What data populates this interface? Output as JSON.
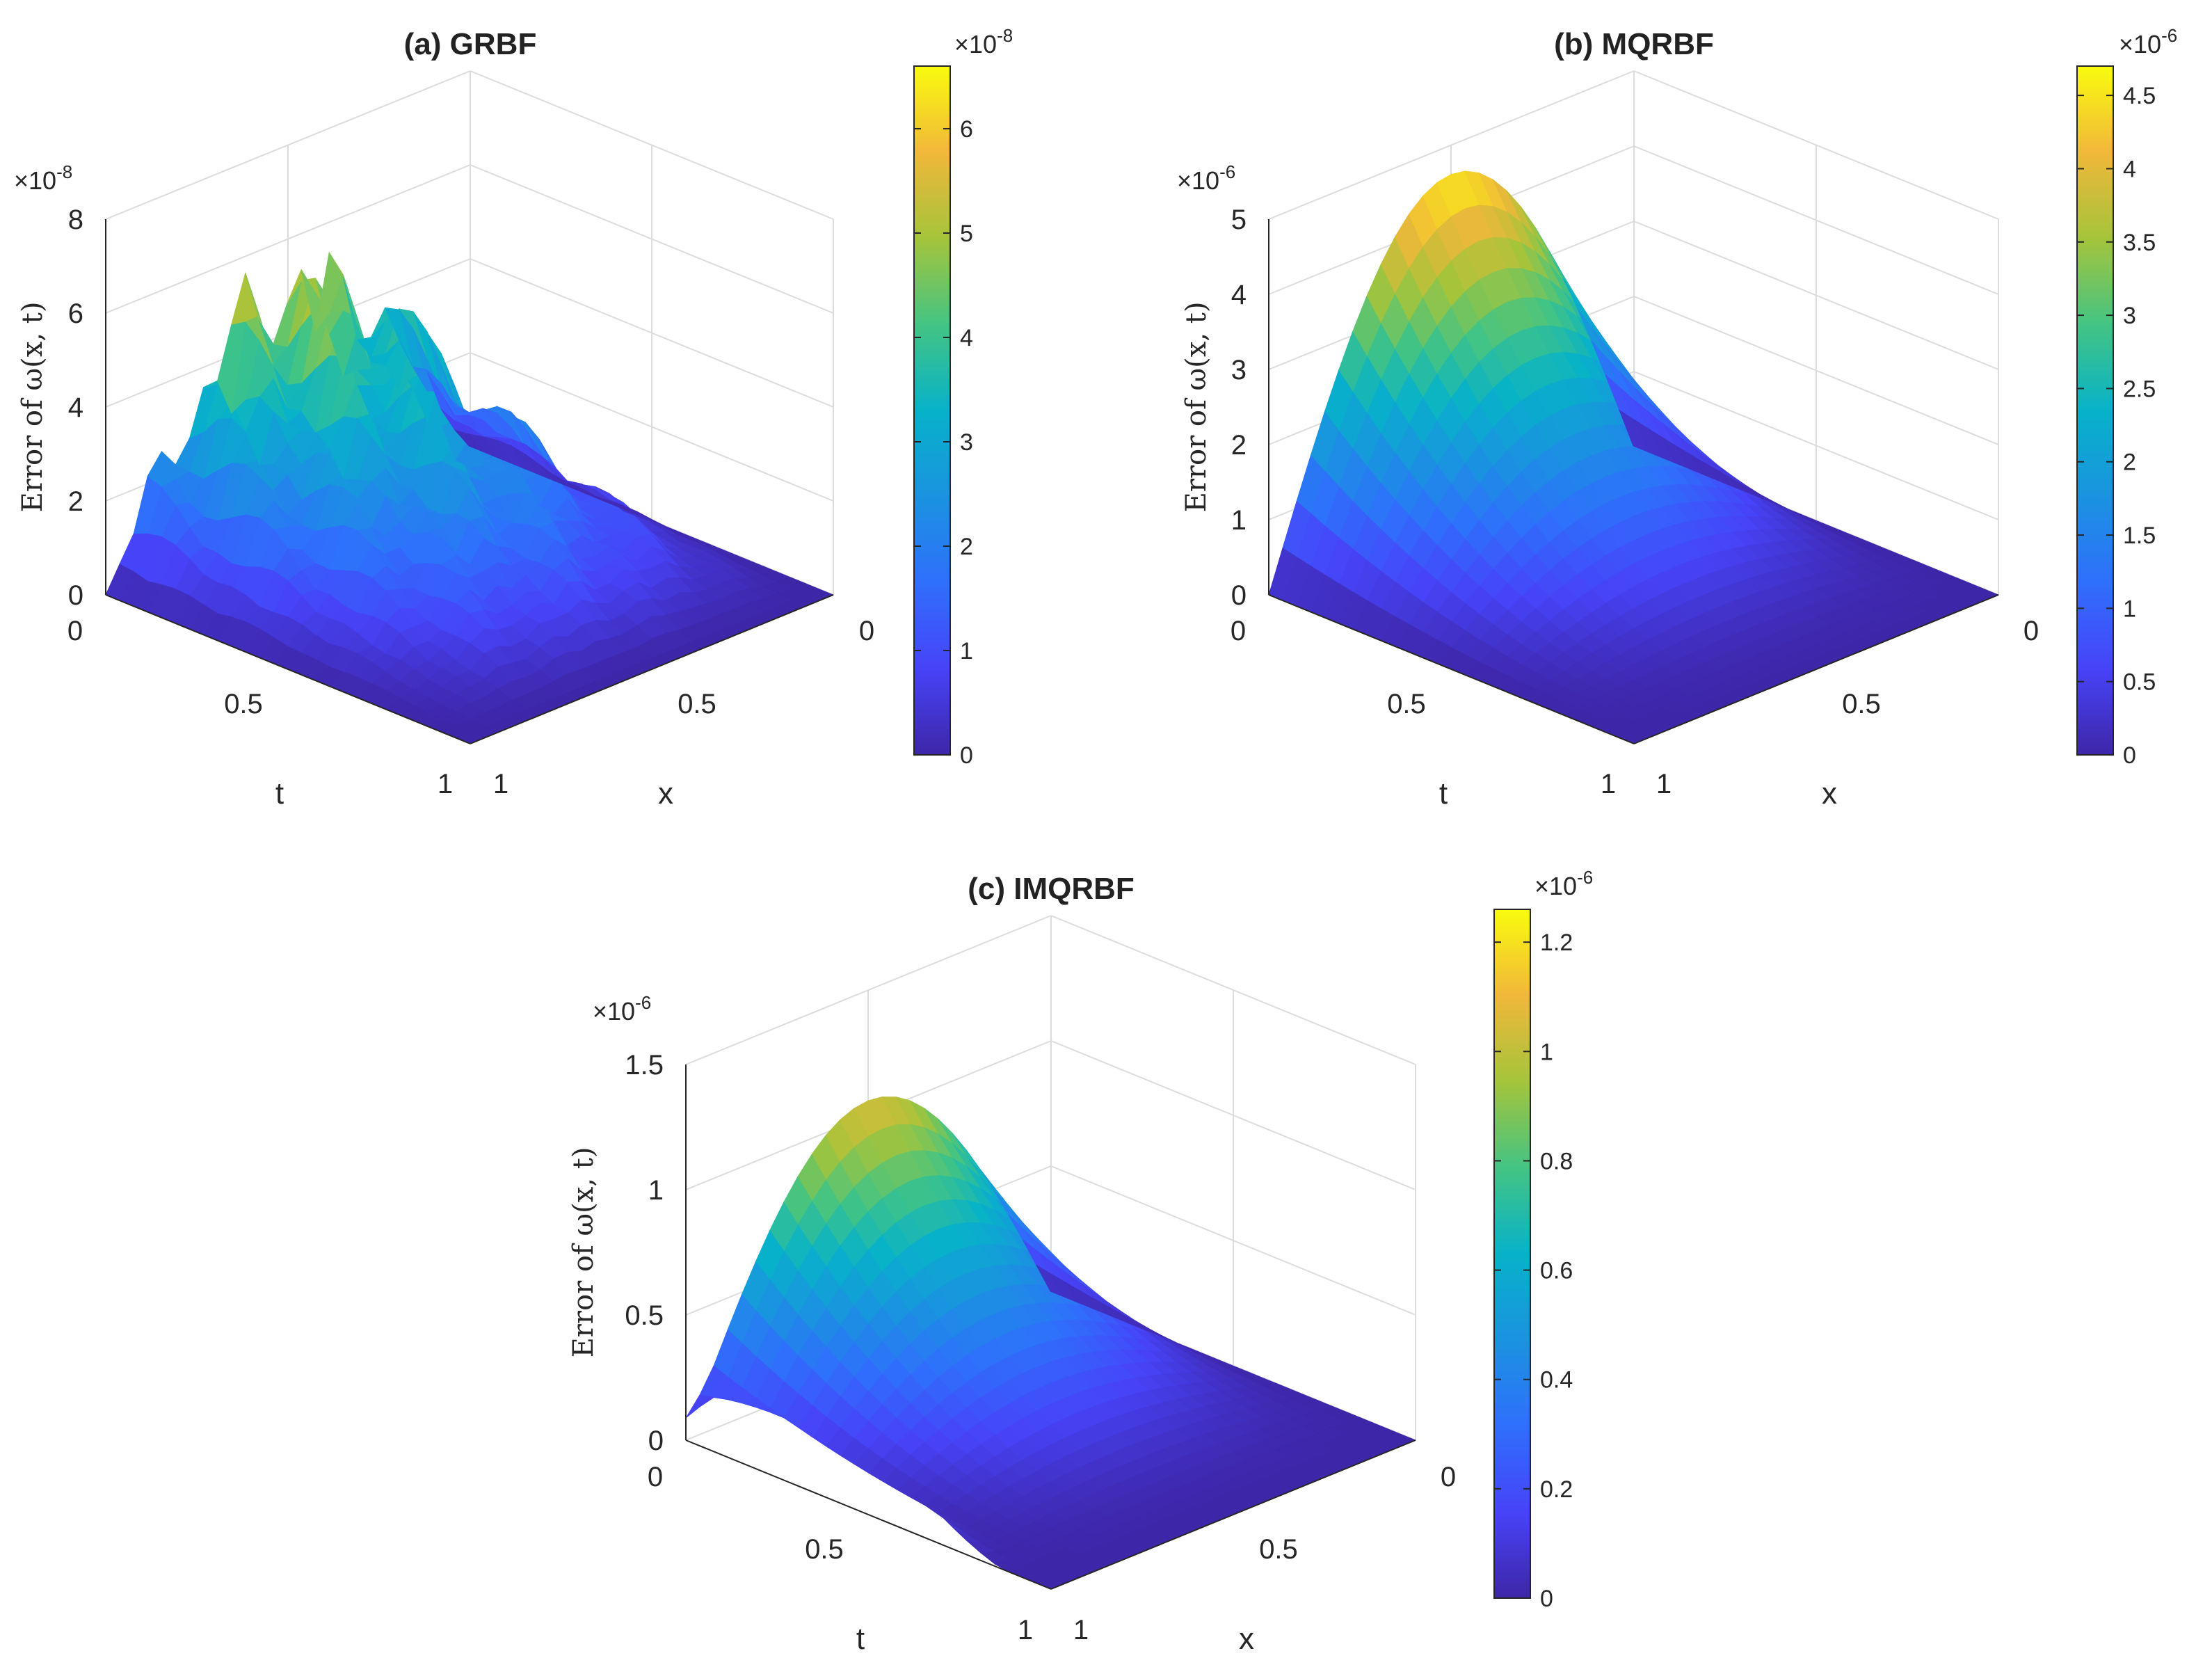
{
  "figure": {
    "grid": true,
    "colormap": "parula"
  },
  "chart_data": [
    {
      "type": "surface",
      "title": "(a) GRBF",
      "xlabel": "x",
      "tlabel": "t",
      "zlabel": "Error of ω(x, t)",
      "zexp": "×10",
      "zexp_power": "-8",
      "zlim": [
        0,
        8
      ],
      "zticks": [
        "0",
        "2",
        "4",
        "6",
        "8"
      ],
      "tticks": [
        "0",
        "0.5",
        "1"
      ],
      "xticks": [
        "0",
        "0.5",
        "1"
      ],
      "clim": [
        0,
        6.6
      ],
      "cb_exp": "×10",
      "cb_exp_power": "-8",
      "cb_ticks": [
        "0",
        "1",
        "2",
        "3",
        "4",
        "5",
        "6"
      ],
      "peak": 6.6,
      "kind": "noisy"
    },
    {
      "type": "surface",
      "title": "(b) MQRBF",
      "xlabel": "x",
      "tlabel": "t",
      "zlabel": "Error of ω(x, t)",
      "zexp": "×10",
      "zexp_power": "-6",
      "zlim": [
        0,
        5
      ],
      "zticks": [
        "0",
        "1",
        "2",
        "3",
        "4",
        "5"
      ],
      "tticks": [
        "0",
        "0.5",
        "1"
      ],
      "xticks": [
        "0",
        "0.5",
        "1"
      ],
      "clim": [
        0,
        4.7
      ],
      "cb_exp": "×10",
      "cb_exp_power": "-6",
      "cb_ticks": [
        "0",
        "0.5",
        "1",
        "1.5",
        "2",
        "2.5",
        "3",
        "3.5",
        "4",
        "4.5"
      ],
      "peak": 4.7,
      "kind": "smooth"
    },
    {
      "type": "surface",
      "title": "(c) IMQRBF",
      "xlabel": "x",
      "tlabel": "t",
      "zlabel": "Error of ω(x, t)",
      "zexp": "×10",
      "zexp_power": "-6",
      "zlim": [
        0,
        1.5
      ],
      "zticks": [
        "0",
        "0.5",
        "1",
        "1.5"
      ],
      "tticks": [
        "0",
        "0.5",
        "1"
      ],
      "xticks": [
        "0",
        "0.5",
        "1"
      ],
      "clim": [
        0,
        1.26
      ],
      "cb_exp": "×10",
      "cb_exp_power": "-6",
      "cb_ticks": [
        "0",
        "0.2",
        "0.4",
        "0.6",
        "0.8",
        "1",
        "1.2"
      ],
      "peak": 1.26,
      "kind": "ridge"
    }
  ]
}
